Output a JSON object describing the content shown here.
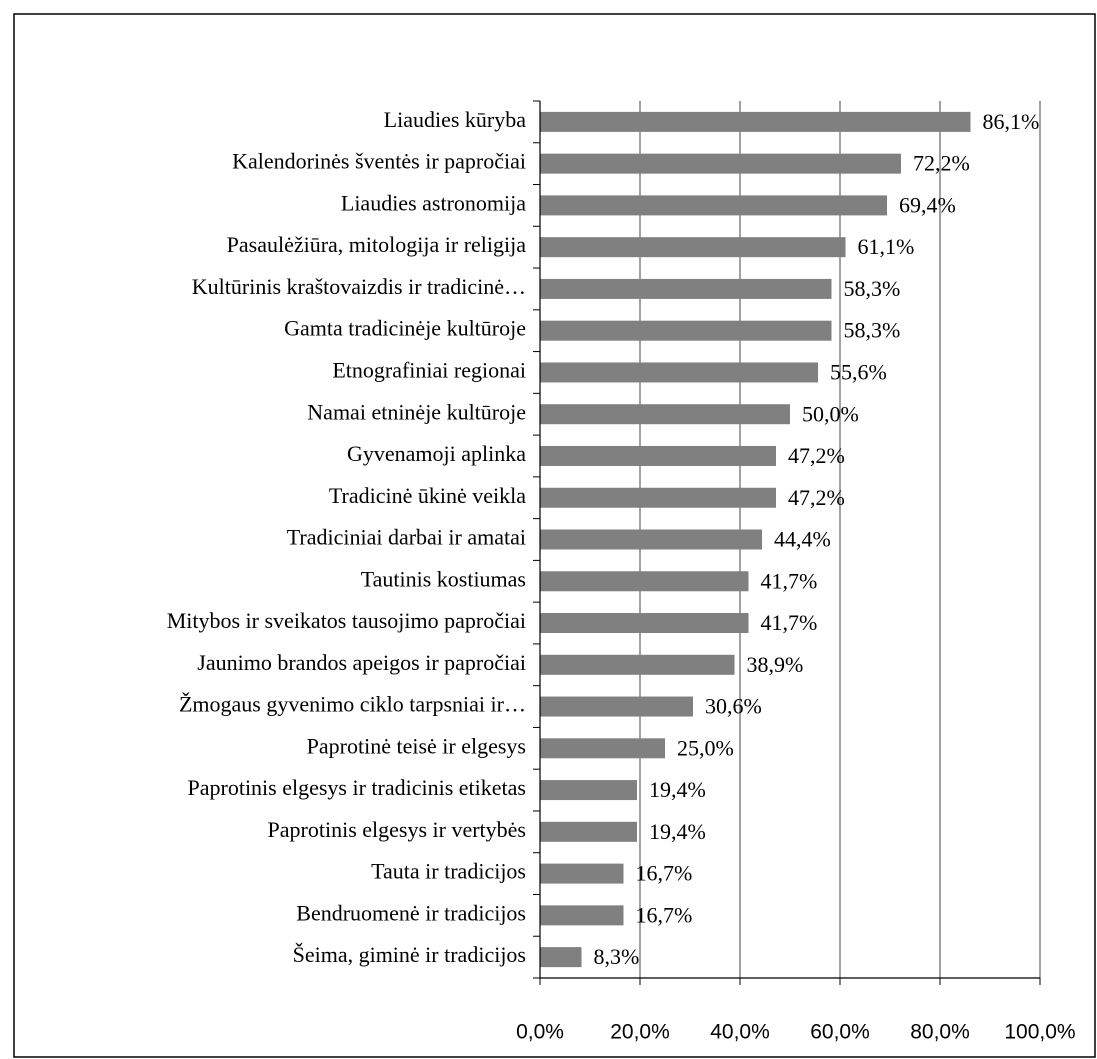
{
  "chart_data": {
    "type": "bar",
    "orientation": "horizontal",
    "categories": [
      "Liaudies kūryba",
      "Kalendorinės šventės ir papročiai",
      "Liaudies astronomija",
      "Pasaulėžiūra, mitologija ir religija",
      "Kultūrinis kraštovaizdis ir tradicinė…",
      "Gamta tradicinėje kultūroje",
      "Etnografiniai regionai",
      "Namai etninėje kultūroje",
      "Gyvenamoji aplinka",
      "Tradicinė ūkinė veikla",
      "Tradiciniai darbai ir amatai",
      "Tautinis kostiumas",
      "Mitybos ir sveikatos tausojimo papročiai",
      "Jaunimo brandos apeigos ir papročiai",
      "Žmogaus gyvenimo ciklo tarpsniai ir…",
      "Paprotinė teisė ir elgesys",
      "Paprotinis elgesys ir tradicinis etiketas",
      "Paprotinis elgesys ir vertybės",
      "Tauta ir tradicijos",
      "Bendruomenė ir tradicijos",
      "Šeima, giminė ir tradicijos"
    ],
    "values": [
      86.1,
      72.2,
      69.4,
      61.1,
      58.3,
      58.3,
      55.6,
      50.0,
      47.2,
      47.2,
      44.4,
      41.7,
      41.7,
      38.9,
      30.6,
      25.0,
      19.4,
      19.4,
      16.7,
      16.7,
      8.3
    ],
    "value_labels": [
      "86,1%",
      "72,2%",
      "69,4%",
      "61,1%",
      "58,3%",
      "58,3%",
      "55,6%",
      "50,0%",
      "47,2%",
      "47,2%",
      "44,4%",
      "41,7%",
      "41,7%",
      "38,9%",
      "30,6%",
      "25,0%",
      "19,4%",
      "19,4%",
      "16,7%",
      "16,7%",
      "8,3%"
    ],
    "color": "#808080",
    "xlim": [
      0,
      100
    ],
    "xticks": [
      {
        "value": 0,
        "label": "0,0%"
      },
      {
        "value": 20,
        "label": "20,0%"
      },
      {
        "value": 40,
        "label": "40,0%"
      },
      {
        "value": 60,
        "label": "60,0%"
      },
      {
        "value": 80,
        "label": "80,0%"
      },
      {
        "value": 100,
        "label": "100,0%"
      }
    ],
    "grid": true
  }
}
